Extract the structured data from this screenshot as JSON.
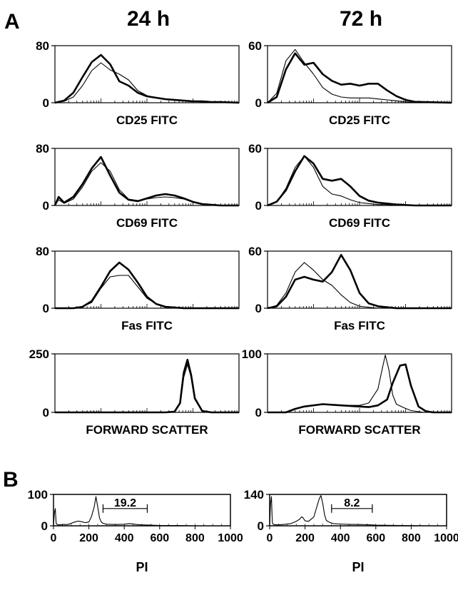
{
  "figure": {
    "panel_a_letter": "A",
    "panel_b_letter": "B",
    "col_headers": [
      "24 h",
      "72 h"
    ]
  },
  "chart_data": [
    {
      "type": "line",
      "panel": "A",
      "column": "24 h",
      "xlabel": "CD25 FITC",
      "ylim": [
        0,
        80
      ],
      "y_ticks": [
        "80",
        "0"
      ],
      "series": [
        {
          "style": "thick",
          "x": [
            0,
            5,
            10,
            15,
            20,
            25,
            30,
            35,
            40,
            45,
            50,
            55,
            60,
            65,
            70,
            75,
            80,
            85,
            90,
            100
          ],
          "values": [
            0,
            3,
            14,
            36,
            57,
            67,
            54,
            30,
            24,
            14,
            9,
            7,
            5,
            4,
            3,
            2,
            2,
            1,
            1,
            0
          ]
        },
        {
          "style": "thin",
          "x": [
            0,
            5,
            10,
            15,
            20,
            25,
            30,
            35,
            40,
            45,
            50,
            55,
            60,
            65,
            70,
            75,
            80,
            85,
            90,
            100
          ],
          "values": [
            0,
            2,
            8,
            24,
            45,
            56,
            46,
            40,
            32,
            17,
            10,
            7,
            5,
            4,
            3,
            2,
            1,
            1,
            0,
            0
          ]
        }
      ]
    },
    {
      "type": "line",
      "panel": "A",
      "column": "72 h",
      "xlabel": "CD25 FITC",
      "ylim": [
        0,
        60
      ],
      "y_ticks": [
        "60",
        "0"
      ],
      "series": [
        {
          "style": "thick",
          "x": [
            0,
            5,
            10,
            15,
            20,
            25,
            30,
            35,
            40,
            45,
            50,
            55,
            60,
            65,
            70,
            75,
            80,
            100
          ],
          "values": [
            0,
            6,
            35,
            52,
            40,
            42,
            30,
            23,
            19,
            20,
            18,
            20,
            20,
            13,
            7,
            3,
            1,
            0
          ]
        },
        {
          "style": "thin",
          "x": [
            0,
            5,
            10,
            15,
            20,
            25,
            30,
            35,
            40,
            45,
            50,
            55,
            60,
            65,
            70,
            75,
            80,
            100
          ],
          "values": [
            0,
            10,
            44,
            56,
            42,
            30,
            16,
            9,
            6,
            5,
            5,
            5,
            4,
            3,
            2,
            1,
            0,
            0
          ]
        }
      ]
    },
    {
      "type": "line",
      "panel": "A",
      "column": "24 h",
      "xlabel": "CD69 FITC",
      "ylim": [
        0,
        80
      ],
      "y_ticks": [
        "80",
        "0"
      ],
      "series": [
        {
          "style": "thick",
          "x": [
            0,
            2,
            5,
            10,
            15,
            20,
            25,
            30,
            35,
            40,
            45,
            50,
            55,
            60,
            65,
            70,
            75,
            80,
            85,
            90,
            100
          ],
          "values": [
            0,
            12,
            4,
            12,
            30,
            52,
            68,
            42,
            18,
            8,
            6,
            10,
            14,
            16,
            14,
            10,
            5,
            2,
            1,
            0,
            0
          ]
        },
        {
          "style": "thin",
          "x": [
            0,
            2,
            5,
            10,
            15,
            20,
            25,
            30,
            35,
            40,
            45,
            50,
            55,
            60,
            65,
            70,
            75,
            80,
            85,
            90,
            100
          ],
          "values": [
            0,
            8,
            3,
            9,
            26,
            48,
            60,
            48,
            22,
            9,
            7,
            9,
            11,
            12,
            11,
            9,
            5,
            2,
            1,
            0,
            0
          ]
        }
      ]
    },
    {
      "type": "line",
      "panel": "A",
      "column": "72 h",
      "xlabel": "CD69 FITC",
      "ylim": [
        0,
        60
      ],
      "y_ticks": [
        "60",
        "0"
      ],
      "series": [
        {
          "style": "thick",
          "x": [
            0,
            5,
            10,
            15,
            20,
            25,
            30,
            35,
            40,
            45,
            50,
            55,
            60,
            65,
            70,
            80,
            100
          ],
          "values": [
            0,
            4,
            16,
            36,
            52,
            44,
            28,
            26,
            28,
            20,
            10,
            5,
            3,
            2,
            1,
            0,
            0
          ]
        },
        {
          "style": "thin",
          "x": [
            0,
            5,
            10,
            15,
            20,
            25,
            30,
            35,
            40,
            45,
            50,
            55,
            60,
            65,
            70,
            80,
            100
          ],
          "values": [
            0,
            4,
            18,
            40,
            52,
            40,
            20,
            12,
            10,
            6,
            3,
            2,
            1,
            1,
            0,
            0,
            0
          ]
        }
      ]
    },
    {
      "type": "line",
      "panel": "A",
      "column": "24 h",
      "xlabel": "Fas FITC",
      "ylim": [
        0,
        80
      ],
      "y_ticks": [
        "80",
        "0"
      ],
      "series": [
        {
          "style": "thick",
          "x": [
            0,
            10,
            15,
            20,
            25,
            30,
            35,
            40,
            45,
            50,
            55,
            60,
            65,
            70,
            100
          ],
          "values": [
            0,
            0,
            2,
            10,
            30,
            52,
            64,
            54,
            36,
            16,
            6,
            2,
            1,
            0,
            0
          ]
        },
        {
          "style": "thin",
          "x": [
            0,
            10,
            15,
            20,
            25,
            30,
            35,
            40,
            45,
            50,
            55,
            60,
            65,
            70,
            100
          ],
          "values": [
            0,
            0,
            2,
            8,
            28,
            44,
            46,
            46,
            30,
            14,
            6,
            2,
            1,
            0,
            0
          ]
        }
      ]
    },
    {
      "type": "line",
      "panel": "A",
      "column": "72 h",
      "xlabel": "Fas FITC",
      "ylim": [
        0,
        60
      ],
      "y_ticks": [
        "60",
        "0"
      ],
      "series": [
        {
          "style": "thick",
          "x": [
            0,
            5,
            10,
            15,
            20,
            25,
            30,
            35,
            40,
            45,
            50,
            55,
            60,
            65,
            70,
            80,
            100
          ],
          "values": [
            0,
            2,
            12,
            30,
            33,
            30,
            28,
            38,
            56,
            40,
            16,
            5,
            2,
            1,
            0,
            0,
            0
          ]
        },
        {
          "style": "thin",
          "x": [
            0,
            5,
            10,
            15,
            20,
            25,
            30,
            35,
            40,
            45,
            50,
            55,
            60,
            65,
            70,
            80,
            100
          ],
          "values": [
            0,
            3,
            16,
            38,
            48,
            40,
            30,
            24,
            14,
            6,
            2,
            1,
            0,
            0,
            0,
            0,
            0
          ]
        }
      ]
    },
    {
      "type": "line",
      "panel": "A",
      "column": "24 h",
      "xlabel": "FORWARD SCATTER",
      "ylim": [
        0,
        250
      ],
      "y_ticks": [
        "250",
        "0"
      ],
      "series": [
        {
          "style": "thick",
          "x": [
            0,
            60,
            65,
            68,
            70,
            72,
            74,
            76,
            80,
            85,
            100
          ],
          "values": [
            0,
            0,
            3,
            40,
            170,
            225,
            160,
            60,
            6,
            0,
            0
          ]
        },
        {
          "style": "thin",
          "x": [
            0,
            60,
            65,
            68,
            70,
            72,
            74,
            76,
            80,
            85,
            100
          ],
          "values": [
            0,
            0,
            3,
            35,
            150,
            205,
            150,
            55,
            6,
            0,
            0
          ]
        }
      ]
    },
    {
      "type": "line",
      "panel": "A",
      "column": "72 h",
      "xlabel": "FORWARD SCATTER",
      "ylim": [
        0,
        100
      ],
      "y_ticks": [
        "100",
        "0"
      ],
      "series": [
        {
          "style": "thick",
          "x": [
            0,
            10,
            15,
            20,
            30,
            40,
            50,
            55,
            60,
            65,
            68,
            72,
            75,
            78,
            82,
            86,
            90,
            100
          ],
          "values": [
            0,
            0,
            6,
            10,
            14,
            12,
            10,
            9,
            12,
            22,
            50,
            80,
            82,
            45,
            10,
            2,
            0,
            0
          ]
        },
        {
          "style": "thin",
          "x": [
            0,
            10,
            15,
            20,
            30,
            40,
            50,
            55,
            60,
            62,
            64,
            66,
            68,
            70,
            74,
            78,
            85,
            100
          ],
          "values": [
            0,
            0,
            6,
            10,
            14,
            12,
            12,
            16,
            40,
            70,
            98,
            72,
            30,
            14,
            8,
            3,
            0,
            0
          ]
        }
      ]
    },
    {
      "type": "line",
      "panel": "B",
      "column": "24 h",
      "xlabel": "PI",
      "ylim": [
        0,
        100
      ],
      "xlim": [
        0,
        1000
      ],
      "y_ticks": [
        "100",
        "0"
      ],
      "x_ticks": [
        "0",
        "200",
        "400",
        "600",
        "800",
        "1000"
      ],
      "gate": {
        "from": 280,
        "to": 530,
        "label": "19.2"
      },
      "series": [
        {
          "style": "thin",
          "x": [
            0,
            5,
            10,
            15,
            20,
            30,
            50,
            80,
            100,
            120,
            140,
            160,
            180,
            200,
            215,
            230,
            240,
            250,
            260,
            270,
            280,
            300,
            350,
            400,
            430,
            450,
            470,
            500,
            550,
            600,
            700,
            800,
            900,
            1000
          ],
          "values": [
            0,
            40,
            55,
            8,
            4,
            3,
            4,
            4,
            8,
            12,
            15,
            13,
            10,
            12,
            30,
            60,
            93,
            60,
            25,
            12,
            8,
            5,
            4,
            5,
            7,
            6,
            4,
            3,
            2,
            1,
            1,
            0,
            0,
            0
          ]
        }
      ]
    },
    {
      "type": "line",
      "panel": "B",
      "column": "72 h",
      "xlabel": "PI",
      "ylim": [
        0,
        140
      ],
      "xlim": [
        0,
        1000
      ],
      "y_ticks": [
        "140",
        "0"
      ],
      "x_ticks": [
        "0",
        "200",
        "400",
        "600",
        "800",
        "1000"
      ],
      "gate": {
        "from": 350,
        "to": 580,
        "label": "8.2"
      },
      "series": [
        {
          "style": "thin",
          "x": [
            0,
            5,
            10,
            15,
            20,
            40,
            80,
            120,
            150,
            170,
            180,
            190,
            200,
            220,
            250,
            265,
            280,
            290,
            300,
            310,
            320,
            340,
            360,
            400,
            450,
            500,
            550,
            600,
            700,
            800,
            900,
            1000
          ],
          "values": [
            0,
            100,
            130,
            15,
            6,
            4,
            6,
            10,
            20,
            30,
            40,
            35,
            22,
            20,
            40,
            80,
            120,
            135,
            100,
            50,
            24,
            15,
            10,
            8,
            6,
            6,
            5,
            3,
            2,
            1,
            0,
            0
          ]
        }
      ]
    }
  ]
}
